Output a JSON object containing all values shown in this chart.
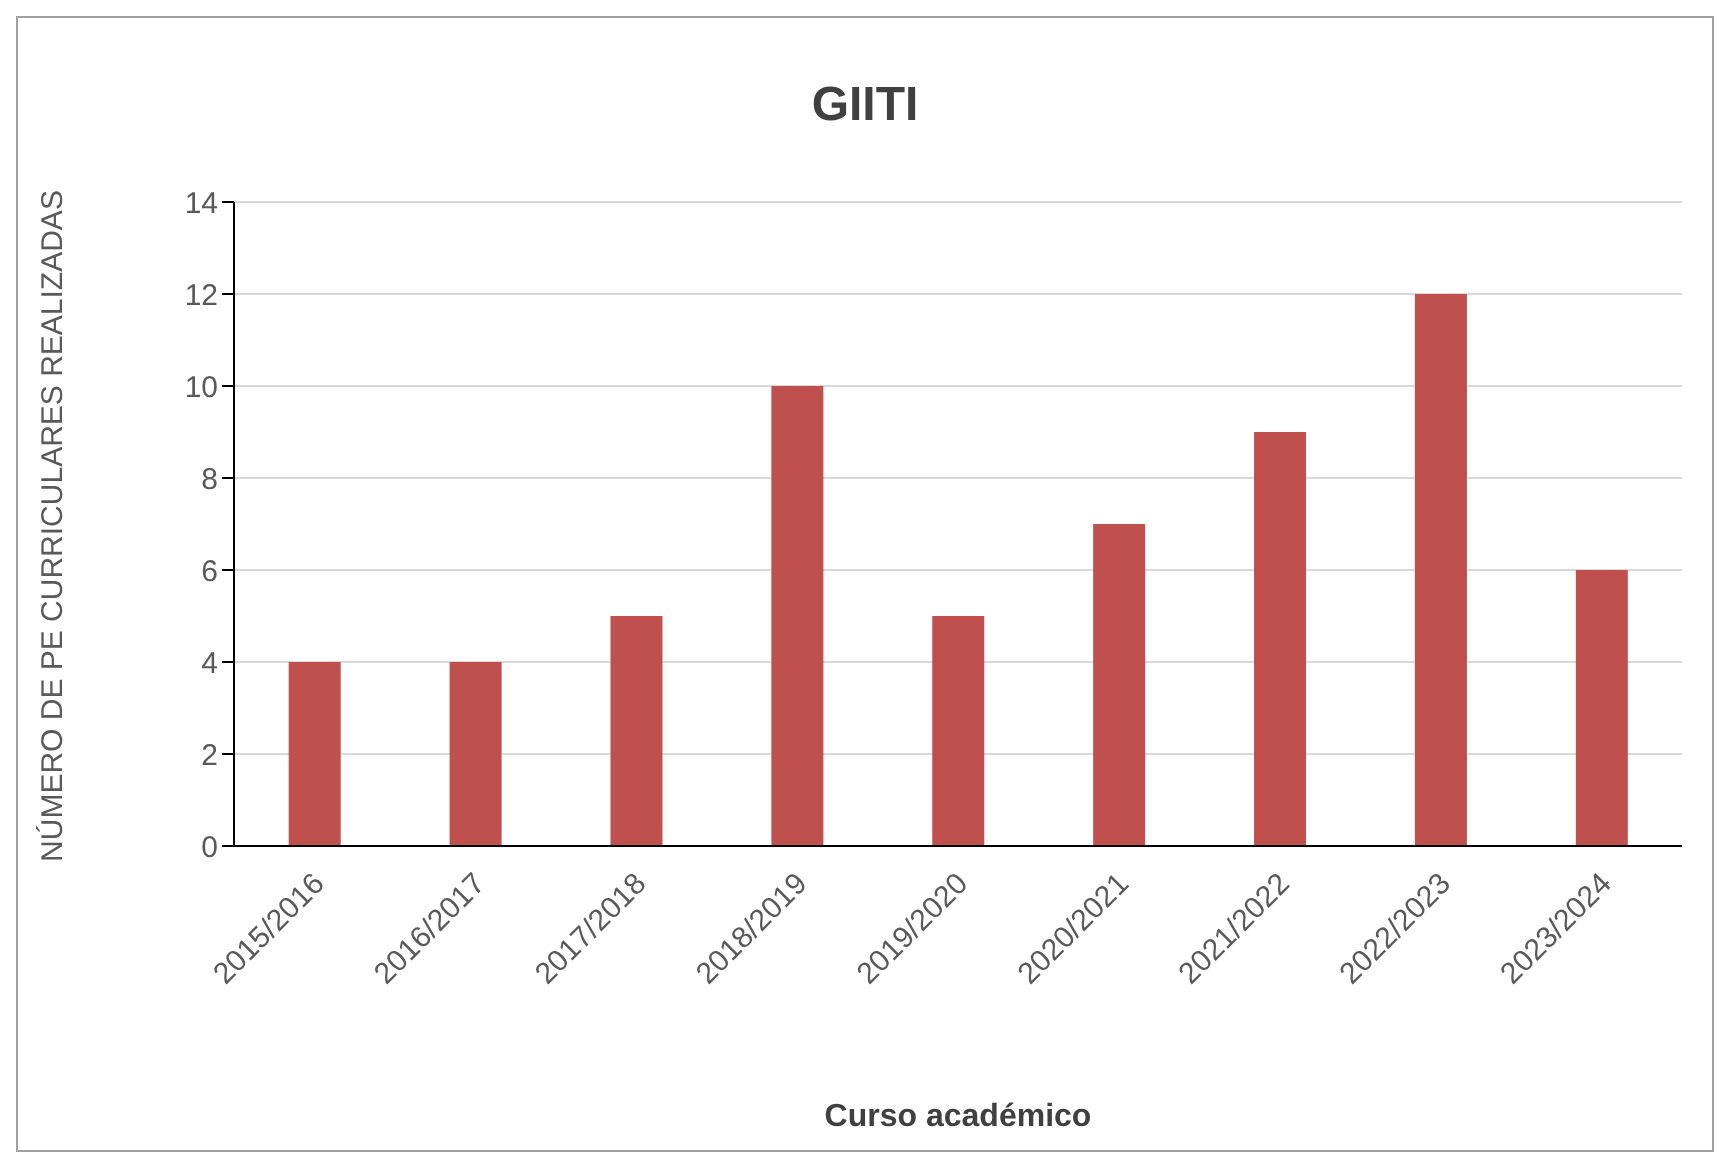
{
  "chart_data": {
    "type": "bar",
    "title": "GIITI",
    "xlabel": "Curso académico",
    "ylabel": "NÚMERO DE PE CURRICULARES REALIZADAS",
    "categories": [
      "2015/2016",
      "2016/2017",
      "2017/2018",
      "2018/2019",
      "2019/2020",
      "2020/2021",
      "2021/2022",
      "2022/2023",
      "2023/2024"
    ],
    "values": [
      4,
      4,
      5,
      10,
      5,
      7,
      9,
      12,
      6
    ],
    "color": "#c0504d",
    "ylim": [
      0,
      14
    ],
    "yticks": [
      0,
      2,
      4,
      6,
      8,
      10,
      12,
      14
    ],
    "grid": "y"
  }
}
